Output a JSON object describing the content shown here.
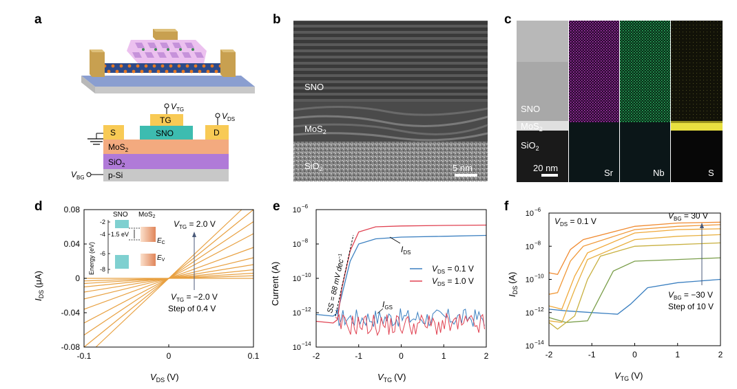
{
  "panels": {
    "a": {
      "letter": "a",
      "cross_section": {
        "vtg": "V",
        "vtg_sub": "TG",
        "vds": "V",
        "vds_sub": "DS",
        "vbg": "V",
        "vbg_sub": "BG",
        "s": "S",
        "tg": "TG",
        "sno": "SNO",
        "d": "D",
        "mos2": "MoS",
        "mos2_sub": "2",
        "sio2": "SiO",
        "sio2_sub": "2",
        "psi": "p-Si"
      }
    },
    "b": {
      "letter": "b",
      "sno": "SNO",
      "mos2": "MoS",
      "mos2_sub": "2",
      "sio2": "SiO",
      "sio2_sub": "2",
      "scale": "5 nm"
    },
    "c": {
      "letter": "c",
      "sno": "SNO",
      "mos2": "MoS",
      "mos2_sub": "2",
      "sio2": "SiO",
      "sio2_sub": "2",
      "scale": "20 nm",
      "maps": [
        {
          "element": "Sr",
          "color": "#c040c8"
        },
        {
          "element": "Nb",
          "color": "#30d070"
        },
        {
          "element": "S",
          "color": "#e8e040"
        }
      ]
    },
    "d": {
      "letter": "d"
    },
    "e": {
      "letter": "e"
    },
    "f": {
      "letter": "f"
    }
  },
  "chart_data": [
    {
      "id": "d",
      "type": "line",
      "xlabel": "V",
      "xlabel_sub": "DS",
      "xlabel_unit": "(V)",
      "ylabel": "I",
      "ylabel_sub": "DS",
      "ylabel_unit": "(μA)",
      "xlim": [
        -0.1,
        0.1
      ],
      "ylim": [
        -0.08,
        0.08
      ],
      "xticks": [
        "-0.1",
        "0",
        "0.1"
      ],
      "yticks": [
        "-0.08",
        "-0.04",
        "0",
        "0.04",
        "0.08"
      ],
      "ytick_values": [
        -0.08,
        -0.04,
        0,
        0.04,
        0.08
      ],
      "xtick_values": [
        -0.1,
        0,
        0.1
      ],
      "series_slopes": [
        0.0,
        0.03,
        0.06,
        0.1,
        0.16,
        0.24,
        0.36,
        0.52,
        0.66,
        0.8,
        0.93
      ],
      "series_color": "#e8a040",
      "annotations": {
        "top": "V",
        "top_sub": "TG",
        "top_val": " = 2.0 V",
        "bottom": "V",
        "bottom_sub": "TG",
        "bottom_val": " = −2.0 V",
        "step": "Step of 0.4 V"
      },
      "inset": {
        "ylabel": "Energy (eV)",
        "sno": "SNO",
        "mos2": "MoS",
        "mos2_sub": "2",
        "ticks": [
          "-2",
          "-4",
          "-6",
          "-8"
        ],
        "gap": "1.5 eV",
        "ec": "E",
        "ec_sub": "C",
        "ev": "E",
        "ev_sub": "V"
      }
    },
    {
      "id": "e",
      "type": "line",
      "scale": "log",
      "xlabel": "V",
      "xlabel_sub": "TG",
      "xlabel_unit": "(V)",
      "ylabel": "Current (A)",
      "xlim": [
        -2,
        2
      ],
      "ylim": [
        -14,
        -6
      ],
      "xticks": [
        "-2",
        "-1",
        "0",
        "1",
        "2"
      ],
      "xtick_values": [
        -2,
        -1,
        0,
        1,
        2
      ],
      "yticks_exp": [
        -14,
        -12,
        -10,
        -8,
        -6
      ],
      "series": [
        {
          "name": "V",
          "name_sub": "DS",
          "name_val": " = 0.1 V",
          "color": "#3a7fc0",
          "x": [
            -2,
            -1.6,
            -1.5,
            -1.4,
            -1.2,
            -1.0,
            -0.6,
            0,
            1,
            2
          ],
          "y": [
            -12.1,
            -12.2,
            -12.0,
            -11.0,
            -9.0,
            -8.0,
            -7.7,
            -7.6,
            -7.55,
            -7.5
          ]
        },
        {
          "name": "V",
          "name_sub": "DS",
          "name_val": " = 1.0 V",
          "color": "#e04050",
          "x": [
            -2,
            -1.6,
            -1.5,
            -1.4,
            -1.2,
            -1.0,
            -0.6,
            0,
            1,
            2
          ],
          "y": [
            -12.5,
            -12.6,
            -12.4,
            -10.6,
            -8.4,
            -7.3,
            -7.0,
            -6.95,
            -6.92,
            -6.9
          ]
        }
      ],
      "annotations": {
        "ids": "I",
        "ids_sub": "DS",
        "igs": "I",
        "igs_sub": "GS",
        "ss": "SS = 88 mV dec",
        "ss_sup": "−1"
      }
    },
    {
      "id": "f",
      "type": "line",
      "scale": "log",
      "xlabel": "V",
      "xlabel_sub": "TG",
      "xlabel_unit": "(V)",
      "ylabel": "I",
      "ylabel_sub": "DS",
      "ylabel_unit": "(A)",
      "xlim": [
        -2,
        2
      ],
      "ylim": [
        -14,
        -6
      ],
      "xticks": [
        "-2",
        "-1",
        "0",
        "1",
        "2"
      ],
      "xtick_values": [
        -2,
        -1,
        0,
        1,
        2
      ],
      "yticks_exp": [
        -14,
        -12,
        -10,
        -8,
        -6
      ],
      "series": [
        {
          "color": "#3a7fc0",
          "x": [
            -2,
            -1.6,
            -1.0,
            -0.4,
            -0.1,
            0.3,
            1,
            2
          ],
          "y": [
            -11.8,
            -11.9,
            -12.0,
            -12.1,
            -11.5,
            -10.5,
            -10.2,
            -10.0
          ]
        },
        {
          "color": "#7a9e4a",
          "x": [
            -2,
            -1.6,
            -1.1,
            -0.8,
            -0.5,
            0,
            1,
            2
          ],
          "y": [
            -12.3,
            -12.6,
            -12.5,
            -11.0,
            -9.5,
            -8.9,
            -8.8,
            -8.7
          ]
        },
        {
          "color": "#c8b040",
          "x": [
            -2,
            -1.8,
            -1.4,
            -1.1,
            -0.8,
            0,
            1,
            2
          ],
          "y": [
            -12.6,
            -13.0,
            -12.2,
            -10.0,
            -8.6,
            -8.0,
            -7.9,
            -7.8
          ]
        },
        {
          "color": "#e8b040",
          "x": [
            -2,
            -1.7,
            -1.4,
            -1.1,
            0,
            1,
            2
          ],
          "y": [
            -12.5,
            -12.6,
            -10.6,
            -8.8,
            -7.6,
            -7.4,
            -7.3
          ]
        },
        {
          "color": "#f0a838",
          "x": [
            -2,
            -1.7,
            -1.4,
            -1.1,
            0,
            1,
            2
          ],
          "y": [
            -11.6,
            -11.8,
            -9.8,
            -8.4,
            -7.2,
            -7.0,
            -6.95
          ]
        },
        {
          "color": "#f09838",
          "x": [
            -2,
            -1.8,
            -1.5,
            -1.2,
            0,
            1,
            2
          ],
          "y": [
            -10.9,
            -10.8,
            -8.9,
            -8.0,
            -7.0,
            -6.8,
            -6.7
          ]
        },
        {
          "color": "#f08a30",
          "x": [
            -2,
            -1.8,
            -1.5,
            -1.2,
            0,
            1,
            2
          ],
          "y": [
            -9.6,
            -9.7,
            -8.2,
            -7.6,
            -6.8,
            -6.6,
            -6.55
          ]
        }
      ],
      "annotations": {
        "vds": "V",
        "vds_sub": "DS",
        "vds_val": " = 0.1 V",
        "top": "V",
        "top_sub": "BG",
        "top_val": " = 30 V",
        "bottom": "V",
        "bottom_sub": "BG",
        "bottom_val": " = −30 V",
        "step": "Step of 10 V"
      }
    }
  ]
}
